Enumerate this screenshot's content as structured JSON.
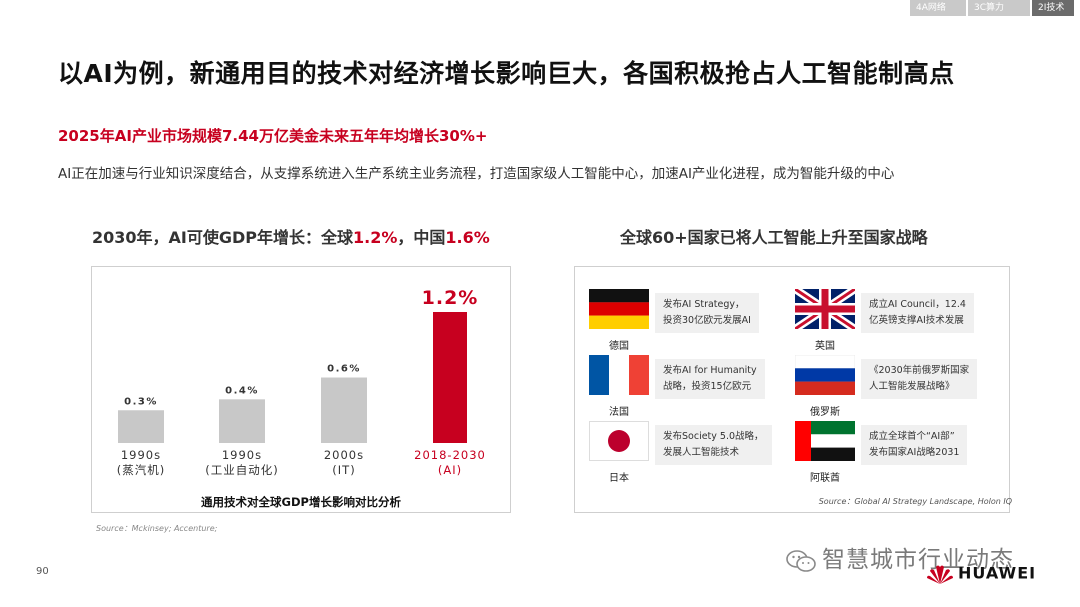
{
  "nav": {
    "tabs": [
      "4A网络",
      "3C算力",
      "2I技术"
    ],
    "active_index": 2
  },
  "slide": {
    "title": "以AI为例，新通用目的技术对经济增长影响巨大，各国积极抢占人工智能制高点",
    "subtitle": "2025年AI产业市场规模7.44万亿美金未来五年年均增长30%+",
    "description": "AI正在加速与行业知识深度结合，从支撑系统进入生产系统主业务流程，打造国家级人工智能中心，加速AI产业化进程，成为智能升级的中心",
    "page_number": "90"
  },
  "left_section": {
    "heading_prefix": "2030年，AI可使GDP年增长：全球",
    "heading_global": "1.2%",
    "heading_mid": "，中国",
    "heading_china": "1.6%",
    "caption": "通用技术对全球GDP增长影响对比分析",
    "source": "Source：Mckinsey; Accenture;"
  },
  "chart_data": {
    "type": "bar",
    "categories": [
      "1990s\n(蒸汽机)",
      "1990s\n(工业自动化)",
      "2000s\n(IT)",
      "2018-2030\n(AI)"
    ],
    "values": [
      0.3,
      0.4,
      0.6,
      1.2
    ],
    "data_labels": [
      "0.3%",
      "0.4%",
      "0.6%",
      "1.2%"
    ],
    "colors": [
      "#c8c8c8",
      "#c8c8c8",
      "#c8c8c8",
      "#c7001f"
    ],
    "highlight_color": "#c7001f",
    "title": "通用技术对全球GDP增长影响对比分析",
    "ylim": [
      0,
      1.2
    ],
    "grid": false
  },
  "right_section": {
    "heading": "全球60+国家已将人工智能上升至国家战略",
    "source": "Source：Global AI Strategy Landscape, Holon IQ",
    "countries": [
      {
        "flag": "germany-flag",
        "name": "德国",
        "note_lines": [
          "发布AI Strategy，",
          "投资30亿欧元发展AI"
        ]
      },
      {
        "flag": "uk-flag",
        "name": "英国",
        "note_lines": [
          "成立AI Council，12.4",
          "亿英镑支撑AI技术发展"
        ]
      },
      {
        "flag": "france-flag",
        "name": "法国",
        "note_lines": [
          "发布AI for Humanity",
          "战略，投资15亿欧元"
        ]
      },
      {
        "flag": "russia-flag",
        "name": "俄罗斯",
        "note_lines": [
          "《2030年前俄罗斯国家",
          "人工智能发展战略》"
        ]
      },
      {
        "flag": "japan-flag",
        "name": "日本",
        "note_lines": [
          "发布Society 5.0战略，",
          "发展人工智能技术"
        ]
      },
      {
        "flag": "uae-flag",
        "name": "阿联酋",
        "note_lines": [
          "成立全球首个“AI部”",
          "发布国家AI战略2031"
        ]
      }
    ]
  },
  "watermark": {
    "text": "智慧城市行业动态"
  },
  "brand": {
    "name": "HUAWEI"
  }
}
